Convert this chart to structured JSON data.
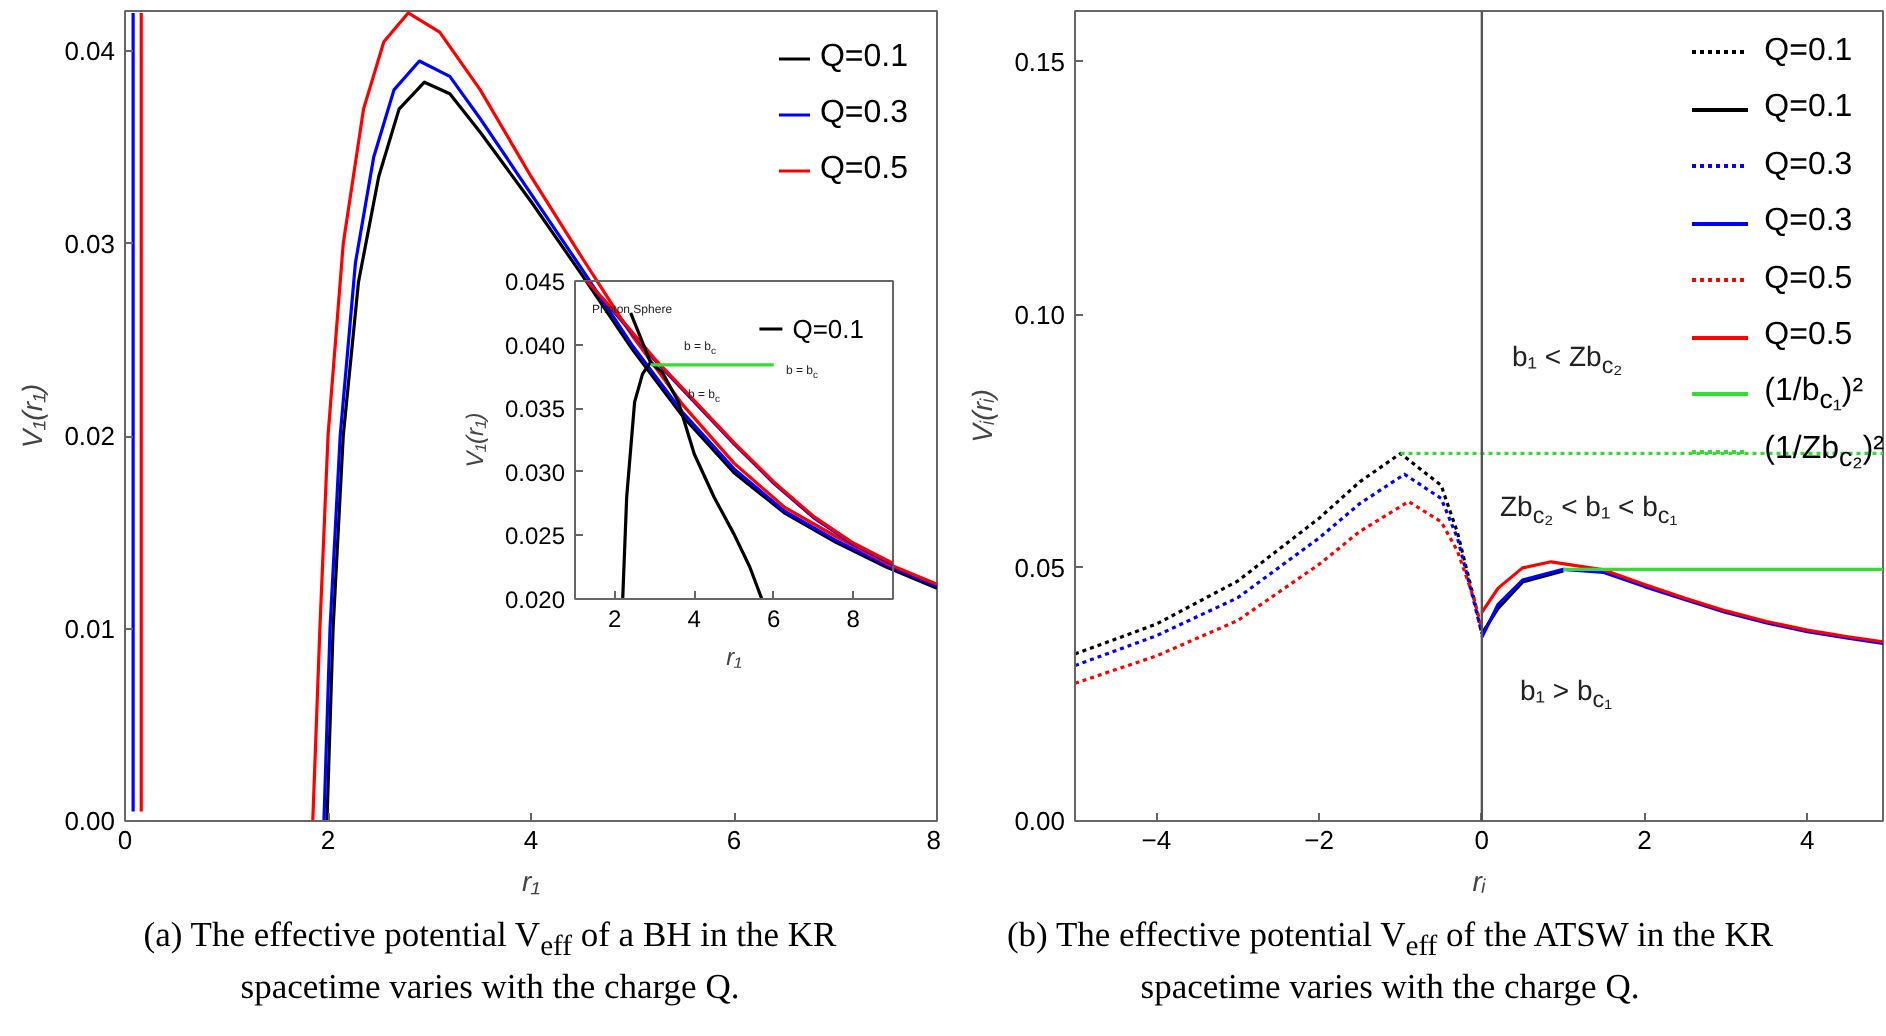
{
  "chart_data": [
    {
      "type": "line",
      "title": "(a) The effective potential V$_{eff}$ of a BH in the KR spacetime varies with the charge Q.",
      "xlabel": "r₁",
      "ylabel": "V₁(r₁)",
      "xlim": [
        0,
        8
      ],
      "ylim": [
        0,
        0.0421
      ],
      "xticks": [
        0,
        2,
        4,
        6,
        8
      ],
      "yticks": [
        {
          "value": 0,
          "label": "0.00"
        },
        {
          "value": 0.01,
          "label": "0.01"
        },
        {
          "value": 0.02,
          "label": "0.02"
        },
        {
          "value": 0.03,
          "label": "0.03"
        },
        {
          "value": 0.04,
          "label": "0.04"
        }
      ],
      "grid": false,
      "legend": "top right",
      "marker": "none",
      "line_style": "solid",
      "series": [
        {
          "name": "Q=0.1",
          "color": "#000000",
          "x": [
            1.99,
            2.05,
            2.15,
            2.3,
            2.5,
            2.7,
            2.95,
            3.2,
            3.5,
            4,
            4.5,
            5,
            5.5,
            6,
            6.5,
            7,
            7.5,
            8
          ],
          "values": [
            0,
            0.01,
            0.02,
            0.028,
            0.0335,
            0.037,
            0.0384,
            0.0378,
            0.0358,
            0.0322,
            0.0284,
            0.0245,
            0.021,
            0.0181,
            0.016,
            0.0145,
            0.0132,
            0.0121
          ]
        },
        {
          "name": "Q=0.3",
          "color": "#0000ff",
          "x": [
            1.96,
            2.02,
            2.12,
            2.27,
            2.45,
            2.65,
            2.9,
            3.2,
            3.5,
            4,
            4.5,
            5,
            5.5,
            6,
            6.5,
            7,
            7.5,
            8
          ],
          "values": [
            0,
            0.01,
            0.02,
            0.029,
            0.0345,
            0.038,
            0.0395,
            0.0387,
            0.0365,
            0.0326,
            0.0287,
            0.0247,
            0.0212,
            0.0183,
            0.0161,
            0.0146,
            0.0133,
            0.0122
          ]
        },
        {
          "name": "Q=0.5",
          "color": "#ff0000",
          "x": [
            1.85,
            1.92,
            2.0,
            2.15,
            2.35,
            2.55,
            2.79,
            3.1,
            3.5,
            4,
            4.5,
            5,
            5.5,
            6,
            6.5,
            7,
            7.5,
            8
          ],
          "values": [
            0,
            0.01,
            0.02,
            0.03,
            0.037,
            0.0405,
            0.042,
            0.041,
            0.038,
            0.0335,
            0.0293,
            0.0252,
            0.0216,
            0.0186,
            0.0163,
            0.0148,
            0.0134,
            0.0123
          ]
        },
        {
          "color": "#0000ff",
          "x": [
            0.08,
            0.08
          ],
          "values": [
            0.0005,
            0.042
          ]
        },
        {
          "color": "#ff0000",
          "x": [
            0.16,
            0.16
          ],
          "values": [
            0.0005,
            0.042
          ]
        }
      ]
    },
    {
      "type": "line",
      "xlabel": "r₁",
      "ylabel": "V₁(r₁)",
      "xlim": [
        1,
        9
      ],
      "ylim": [
        0.02,
        0.045
      ],
      "xticks": [
        2,
        4,
        6,
        8
      ],
      "yticks": [
        {
          "value": 0.02,
          "label": "0.020"
        },
        {
          "value": 0.025,
          "label": "0.025"
        },
        {
          "value": 0.03,
          "label": "0.030"
        },
        {
          "value": 0.035,
          "label": "0.035"
        },
        {
          "value": 0.04,
          "label": "0.040"
        },
        {
          "value": 0.045,
          "label": "0.045"
        }
      ],
      "grid": false,
      "legend": "top right",
      "marker": "none",
      "line_style": "solid",
      "annotations": [
        "Photon Sphere",
        "b = b$_{c}$",
        "b = b$_{c}$",
        "b = b$_{c}$"
      ],
      "series": [
        {
          "color": "#0000ff",
          "x": [
            1.3,
            2,
            3,
            4,
            5,
            6,
            7,
            8,
            9
          ],
          "values": [
            0.045,
            0.0425,
            0.0388,
            0.0355,
            0.0322,
            0.0291,
            0.0264,
            0.0243,
            0.0227
          ]
        },
        {
          "color": "#ff0000",
          "x": [
            1.3,
            2,
            3,
            4,
            5,
            6,
            7,
            8,
            9
          ],
          "values": [
            0.045,
            0.0426,
            0.0389,
            0.0356,
            0.0323,
            0.0292,
            0.0265,
            0.0244,
            0.0228
          ]
        },
        {
          "name": "Q=0.1",
          "color": "#000000",
          "x": [
            2.2,
            2.3,
            2.5,
            2.7,
            2.9,
            3.2,
            3.6,
            4,
            4.5,
            5,
            5.4,
            5.7
          ],
          "values": [
            0.02,
            0.028,
            0.0355,
            0.0377,
            0.0386,
            0.0378,
            0.0355,
            0.0314,
            0.028,
            0.0251,
            0.0225,
            0.02
          ]
        },
        {
          "color": "#000000",
          "x": [
            2.4,
            2.9
          ],
          "values": [
            0.0425,
            0.0386
          ]
        },
        {
          "color": "#33dd33",
          "x": [
            2.9,
            6.0
          ],
          "values": [
            0.0384,
            0.0384
          ]
        }
      ]
    },
    {
      "type": "line",
      "title": "(b) The effective potential V$_{eff}$ of the ATSW in the KR spacetime varies with the charge Q.",
      "xlabel": "rᵢ",
      "ylabel": "Vᵢ(rᵢ)",
      "xlim": [
        -5,
        4.93
      ],
      "ylim": [
        0,
        0.16
      ],
      "xticks": [
        {
          "value": -4,
          "label": "−4"
        },
        {
          "value": -2,
          "label": "−2"
        },
        0,
        2,
        4
      ],
      "yticks": [
        {
          "value": 0,
          "label": "0.00"
        },
        {
          "value": 0.05,
          "label": "0.05"
        },
        {
          "value": 0.1,
          "label": "0.10"
        },
        {
          "value": 0.15,
          "label": "0.15"
        }
      ],
      "grid": false,
      "legend": "top right",
      "marker": "none",
      "line_style": "solid",
      "ref_lines": [
        {
          "axis": "x",
          "value": 0,
          "color": "#555555"
        }
      ],
      "annotations": [
        "b₁ < Zb$_{c₂}$",
        "Zb$_{c₂}$ < b₁ < b$_{c₁}$",
        "b₁ > b$_{c₁}$"
      ],
      "series": [
        {
          "name": "Q=0.1",
          "color": "#000000",
          "line_style": "dotted",
          "x": [
            -5,
            -4,
            -3,
            -2,
            -1.5,
            -1,
            -0.5,
            -0.3,
            -0.1,
            0
          ],
          "values": [
            0.033,
            0.0389,
            0.0474,
            0.0598,
            0.067,
            0.0726,
            0.0663,
            0.057,
            0.0441,
            0.037
          ]
        },
        {
          "name": "Q=0.1",
          "color": "#000000",
          "x": [
            0,
            0.2,
            0.5,
            1
          ],
          "values": [
            0.037,
            0.042,
            0.0472,
            0.0494
          ]
        },
        {
          "name": "Q=0.3",
          "color": "#0000ff",
          "line_style": "dotted",
          "x": [
            -5,
            -4,
            -3,
            -2,
            -1.5,
            -0.95,
            -0.5,
            -0.3,
            -0.1,
            0
          ],
          "values": [
            0.0307,
            0.0366,
            0.0441,
            0.0559,
            0.0627,
            0.0685,
            0.0637,
            0.0559,
            0.0435,
            0.037
          ]
        },
        {
          "name": "Q=0.3",
          "color": "#0000ff",
          "x": [
            0,
            0.2,
            0.5,
            1,
            1.5,
            2,
            2.5,
            3,
            3.5,
            4,
            4.5,
            4.93
          ],
          "values": [
            0.0363,
            0.0428,
            0.0476,
            0.0497,
            0.0491,
            0.0463,
            0.0437,
            0.0412,
            0.0391,
            0.0374,
            0.0361,
            0.0351
          ]
        },
        {
          "name": "Q=0.5",
          "color": "#ff0000",
          "line_style": "dotted",
          "x": [
            -5,
            -4,
            -3,
            -2,
            -1.5,
            -0.9,
            -0.5,
            -0.3,
            -0.1,
            0
          ],
          "values": [
            0.0272,
            0.0326,
            0.0396,
            0.0507,
            0.0572,
            0.0631,
            0.0591,
            0.0533,
            0.0441,
            0.038
          ]
        },
        {
          "name": "Q=0.5",
          "color": "#ff0000",
          "x": [
            0,
            0.2,
            0.5,
            0.85,
            1.5,
            2,
            2.5,
            3,
            3.5,
            4,
            4.5,
            4.93
          ],
          "values": [
            0.0412,
            0.046,
            0.05,
            0.0512,
            0.0496,
            0.0467,
            0.044,
            0.0415,
            0.0394,
            0.0377,
            0.0364,
            0.0354
          ]
        },
        {
          "name": "(1/b$_{c₁}$)²",
          "color": "#33dd33",
          "x": [
            1,
            4.93
          ],
          "values": [
            0.0497,
            0.0497
          ]
        },
        {
          "name": "(1/Zb$_{c₂}$)²",
          "color": "#33dd33",
          "line_style": "dotted",
          "x": [
            -1,
            4.93
          ],
          "values": [
            0.0726,
            0.0726
          ]
        }
      ]
    }
  ]
}
